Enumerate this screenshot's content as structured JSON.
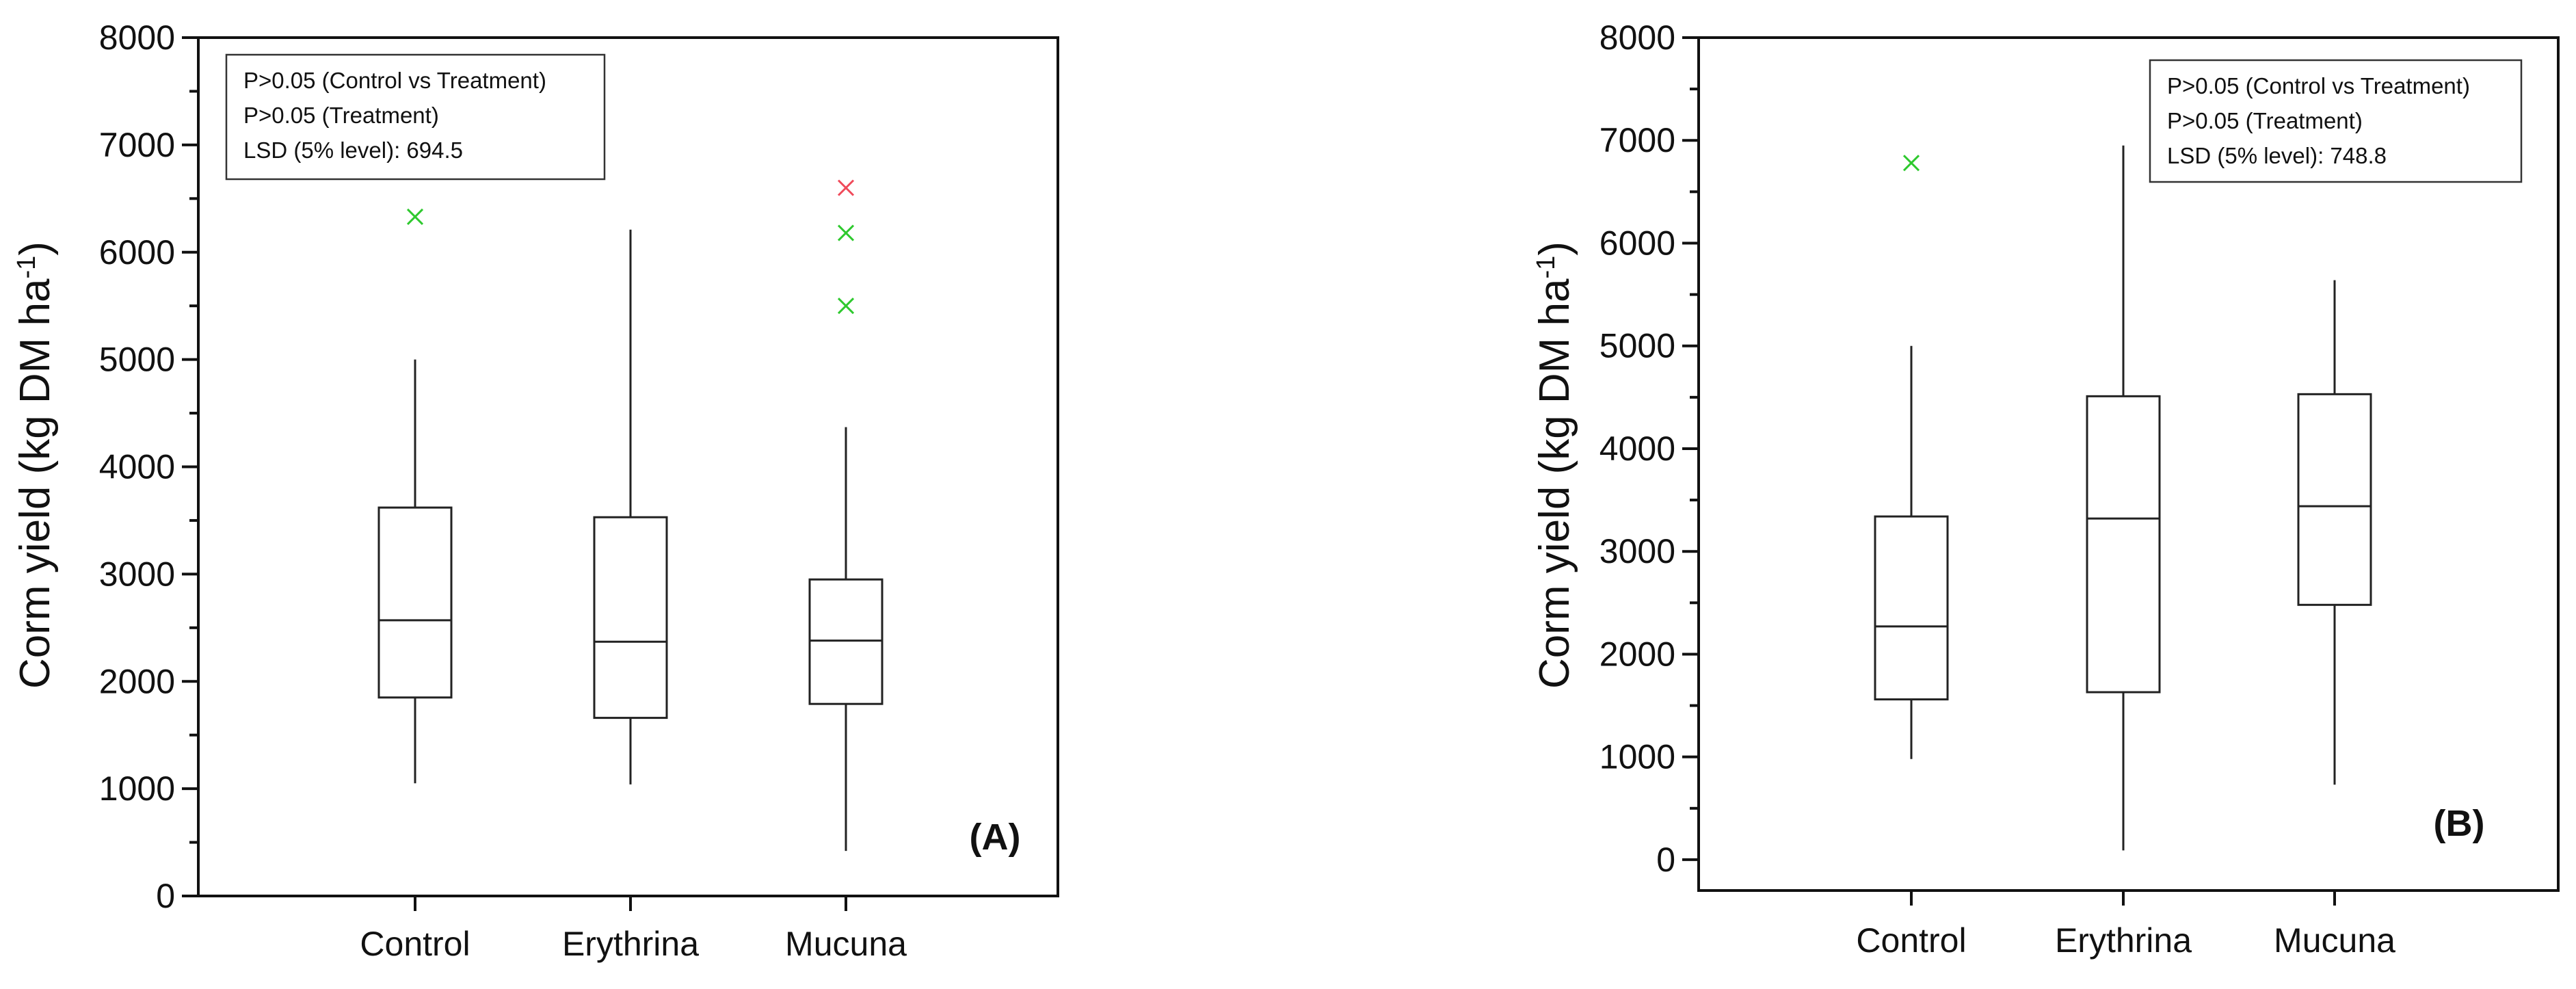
{
  "chart_data": [
    {
      "type": "box",
      "panel_label": "(A)",
      "categories": [
        "Control",
        "Erythrina",
        "Mucuna"
      ],
      "ylabel": "Corm yield (kg DM ha",
      "ylabel_sup": "-1",
      "ylabel_end": ")",
      "ylim": [
        0,
        8000
      ],
      "yticks": [
        0,
        1000,
        2000,
        3000,
        4000,
        5000,
        6000,
        7000,
        8000
      ],
      "grid": false,
      "legend_position": "top-left",
      "annotation_lines": [
        "P>0.05 (Control vs Treatment)",
        "P>0.05 (Treatment)",
        "LSD (5% level): 694.5"
      ],
      "boxes": [
        {
          "category": "Control",
          "whisker_low": 1050,
          "q1": 1850,
          "median": 2570,
          "q3": 3620,
          "whisker_high": 5000,
          "outliers": [
            {
              "value": 6330,
              "color": "#2ec92e"
            }
          ]
        },
        {
          "category": "Erythrina",
          "whisker_low": 1040,
          "q1": 1660,
          "median": 2370,
          "q3": 3530,
          "whisker_high": 6210,
          "outliers": []
        },
        {
          "category": "Mucuna",
          "whisker_low": 420,
          "q1": 1790,
          "median": 2380,
          "q3": 2950,
          "whisker_high": 4370,
          "outliers": [
            {
              "value": 6600,
              "color": "#f04a5a"
            },
            {
              "value": 6180,
              "color": "#2ec92e"
            },
            {
              "value": 5500,
              "color": "#2ec92e"
            }
          ]
        }
      ]
    },
    {
      "type": "box",
      "panel_label": "(B)",
      "categories": [
        "Control",
        "Erythrina",
        "Mucuna"
      ],
      "ylabel": "Corm yield (kg DM ha",
      "ylabel_sup": "-1",
      "ylabel_end": ")",
      "ylim": [
        -300,
        8000
      ],
      "yticks": [
        0,
        1000,
        2000,
        3000,
        4000,
        5000,
        6000,
        7000,
        8000
      ],
      "grid": false,
      "legend_position": "top-right",
      "annotation_lines": [
        "P>0.05 (Control vs Treatment)",
        "P>0.05 (Treatment)",
        "LSD (5% level): 748.8"
      ],
      "boxes": [
        {
          "category": "Control",
          "whisker_low": 980,
          "q1": 1560,
          "median": 2270,
          "q3": 3340,
          "whisker_high": 5000,
          "outliers": [
            {
              "value": 6780,
              "color": "#2ec92e"
            }
          ]
        },
        {
          "category": "Erythrina",
          "whisker_low": 90,
          "q1": 1630,
          "median": 3320,
          "q3": 4510,
          "whisker_high": 6950,
          "outliers": []
        },
        {
          "category": "Mucuna",
          "whisker_low": 730,
          "q1": 2480,
          "median": 3440,
          "q3": 4530,
          "whisker_high": 5640,
          "outliers": []
        }
      ]
    }
  ]
}
